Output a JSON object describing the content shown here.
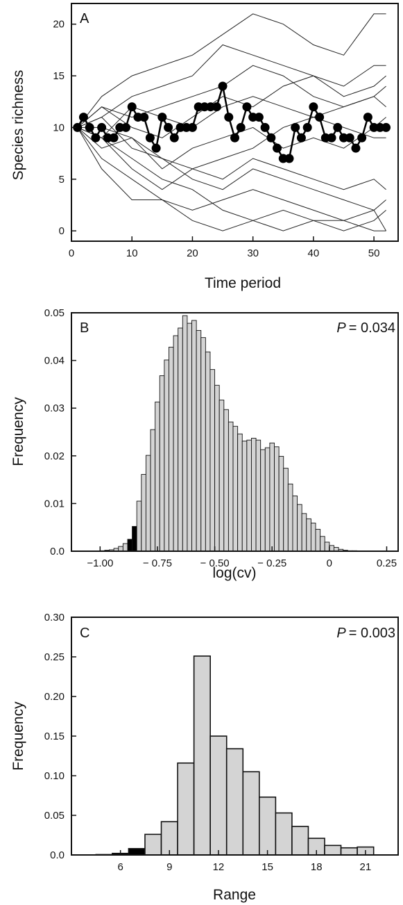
{
  "chart_data": [
    {
      "panel": "A",
      "type": "line",
      "xlabel": "Time period",
      "ylabel": "Species richness",
      "xlim": [
        0,
        54
      ],
      "ylim": [
        -1,
        22
      ],
      "xticks": [
        0,
        10,
        20,
        30,
        40,
        50
      ],
      "yticks": [
        0,
        5,
        10,
        15,
        20
      ],
      "highlight_series": {
        "x": [
          1,
          2,
          3,
          4,
          5,
          6,
          7,
          8,
          9,
          10,
          11,
          12,
          13,
          14,
          15,
          16,
          17,
          18,
          19,
          20,
          21,
          22,
          23,
          24,
          25,
          26,
          27,
          28,
          29,
          30,
          31,
          32,
          33,
          34,
          35,
          36,
          37,
          38,
          39,
          40,
          41,
          42,
          43,
          44,
          45,
          46,
          47,
          48,
          49,
          50,
          51,
          52
        ],
        "values": [
          10,
          11,
          10,
          9,
          10,
          9,
          9,
          10,
          10,
          12,
          11,
          11,
          9,
          8,
          11,
          10,
          9,
          10,
          10,
          10,
          12,
          12,
          12,
          12,
          14,
          11,
          9,
          10,
          12,
          11,
          11,
          10,
          9,
          8,
          7,
          7,
          10,
          9,
          10,
          12,
          11,
          9,
          9,
          10,
          9,
          9,
          8,
          9,
          11,
          10,
          10,
          10
        ]
      },
      "series": [
        {
          "x": [
            1,
            5,
            10,
            15,
            20,
            25,
            30,
            35,
            40,
            45,
            50,
            52
          ],
          "values": [
            10,
            13,
            15,
            16,
            17,
            19,
            21,
            20,
            18,
            17,
            21,
            21
          ]
        },
        {
          "x": [
            1,
            5,
            10,
            15,
            20,
            25,
            30,
            35,
            40,
            45,
            50,
            52
          ],
          "values": [
            10,
            11,
            13,
            14,
            15,
            18,
            17,
            16,
            15,
            14,
            16,
            16
          ]
        },
        {
          "x": [
            1,
            5,
            10,
            15,
            20,
            25,
            30,
            35,
            40,
            45,
            50,
            52
          ],
          "values": [
            10,
            12,
            11,
            12,
            13,
            14,
            16,
            15,
            13,
            12,
            13,
            12
          ]
        },
        {
          "x": [
            1,
            5,
            10,
            15,
            20,
            25,
            30,
            35,
            40,
            45,
            50,
            52
          ],
          "values": [
            10,
            9,
            12,
            11,
            10,
            12,
            13,
            12,
            11,
            10,
            9,
            9
          ]
        },
        {
          "x": [
            1,
            5,
            10,
            15,
            20,
            25,
            30,
            35,
            40,
            45,
            50,
            52
          ],
          "values": [
            10,
            8,
            9,
            6,
            8,
            9,
            10,
            8,
            9,
            8,
            10,
            11
          ]
        },
        {
          "x": [
            1,
            5,
            10,
            15,
            20,
            25,
            30,
            35,
            40,
            45,
            50,
            52
          ],
          "values": [
            10,
            9,
            6,
            4,
            6,
            5,
            7,
            6,
            5,
            4,
            5,
            4
          ]
        },
        {
          "x": [
            1,
            5,
            10,
            15,
            20,
            25,
            30,
            35,
            40,
            45,
            50,
            52
          ],
          "values": [
            10,
            7,
            5,
            3,
            2,
            3,
            4,
            3,
            2,
            1,
            2,
            3
          ]
        },
        {
          "x": [
            1,
            5,
            10,
            15,
            20,
            25,
            30,
            35,
            40,
            45,
            50,
            52
          ],
          "values": [
            10,
            6,
            3,
            3,
            1,
            0,
            1,
            2,
            1,
            0,
            1,
            2
          ]
        },
        {
          "x": [
            1,
            5,
            10,
            15,
            20,
            25,
            30,
            35,
            40,
            45,
            50,
            52
          ],
          "values": [
            10,
            9,
            7,
            5,
            4,
            2,
            1,
            0,
            1,
            1,
            0,
            0
          ]
        },
        {
          "x": [
            1,
            5,
            10,
            15,
            20,
            25,
            30,
            35,
            40,
            45,
            50,
            52
          ],
          "values": [
            10,
            11,
            8,
            7,
            5,
            4,
            6,
            5,
            4,
            3,
            2,
            0
          ]
        },
        {
          "x": [
            1,
            5,
            10,
            15,
            20,
            25,
            30,
            35,
            40,
            45,
            50,
            52
          ],
          "values": [
            10,
            10,
            9,
            7,
            6,
            7,
            8,
            10,
            11,
            12,
            13,
            14
          ]
        },
        {
          "x": [
            1,
            5,
            10,
            15,
            20,
            25,
            30,
            35,
            40,
            45,
            50,
            52
          ],
          "values": [
            10,
            12,
            10,
            9,
            11,
            13,
            12,
            14,
            15,
            13,
            14,
            15
          ]
        }
      ]
    },
    {
      "panel": "B",
      "type": "bar",
      "xlabel": "log(cv)",
      "ylabel": "Frequency",
      "annotation": "= 0.034",
      "annotation_symbol": "P",
      "xlim": [
        -1.125,
        0.3
      ],
      "ylim": [
        0,
        0.05
      ],
      "xticks": [
        -1.0,
        -0.75,
        -0.5,
        -0.25,
        0,
        0.25
      ],
      "xtick_labels": [
        "−1.00",
        "− 0.75",
        "− 0.50",
        "− 0.25",
        "0",
        "0.25"
      ],
      "yticks": [
        0,
        0.01,
        0.02,
        0.03,
        0.04,
        0.05
      ],
      "ytick_labels": [
        "0.0",
        "0.01",
        "0.02",
        "0.03",
        "0.04",
        "0.05"
      ],
      "bin_start": -1.0,
      "bin_width": 0.02,
      "values": [
        0.0001,
        0.0002,
        0.0003,
        0.0006,
        0.001,
        0.0016,
        0.0025,
        0.0052,
        0.0105,
        0.0161,
        0.0201,
        0.0255,
        0.0313,
        0.0368,
        0.0401,
        0.0428,
        0.0452,
        0.0468,
        0.0494,
        0.0478,
        0.0484,
        0.0463,
        0.0448,
        0.0418,
        0.0381,
        0.0348,
        0.0317,
        0.0297,
        0.0271,
        0.0262,
        0.0246,
        0.0231,
        0.0233,
        0.0237,
        0.0233,
        0.0213,
        0.0217,
        0.0227,
        0.0219,
        0.0199,
        0.0174,
        0.0141,
        0.0116,
        0.0098,
        0.0079,
        0.0068,
        0.0059,
        0.0046,
        0.0031,
        0.0019,
        0.0012,
        0.0008,
        0.0004,
        0.0002,
        0.0001,
        0.0001
      ],
      "highlight_indices": [
        6,
        7
      ]
    },
    {
      "panel": "C",
      "type": "bar",
      "xlabel": "Range",
      "ylabel": "Frequency",
      "annotation": "= 0.003",
      "annotation_symbol": "P",
      "xlim": [
        3.0,
        23.0
      ],
      "ylim": [
        0,
        0.3
      ],
      "xticks": [
        6,
        9,
        12,
        15,
        18,
        21
      ],
      "xtick_labels": [
        "6",
        "9",
        "12",
        "15",
        "18",
        "21"
      ],
      "yticks": [
        0,
        0.05,
        0.1,
        0.15,
        0.2,
        0.25,
        0.3
      ],
      "ytick_labels": [
        "0.0",
        "0.05",
        "0.10",
        "0.15",
        "0.20",
        "0.25",
        "0.30"
      ],
      "categories": [
        5,
        6,
        7,
        8,
        9,
        10,
        11,
        12,
        13,
        14,
        15,
        16,
        17,
        18,
        19,
        20,
        21
      ],
      "values": [
        0.0005,
        0.002,
        0.008,
        0.026,
        0.042,
        0.116,
        0.251,
        0.15,
        0.134,
        0.105,
        0.073,
        0.053,
        0.036,
        0.021,
        0.012,
        0.009,
        0.01
      ],
      "highlight_indices": [
        1,
        2
      ]
    }
  ]
}
